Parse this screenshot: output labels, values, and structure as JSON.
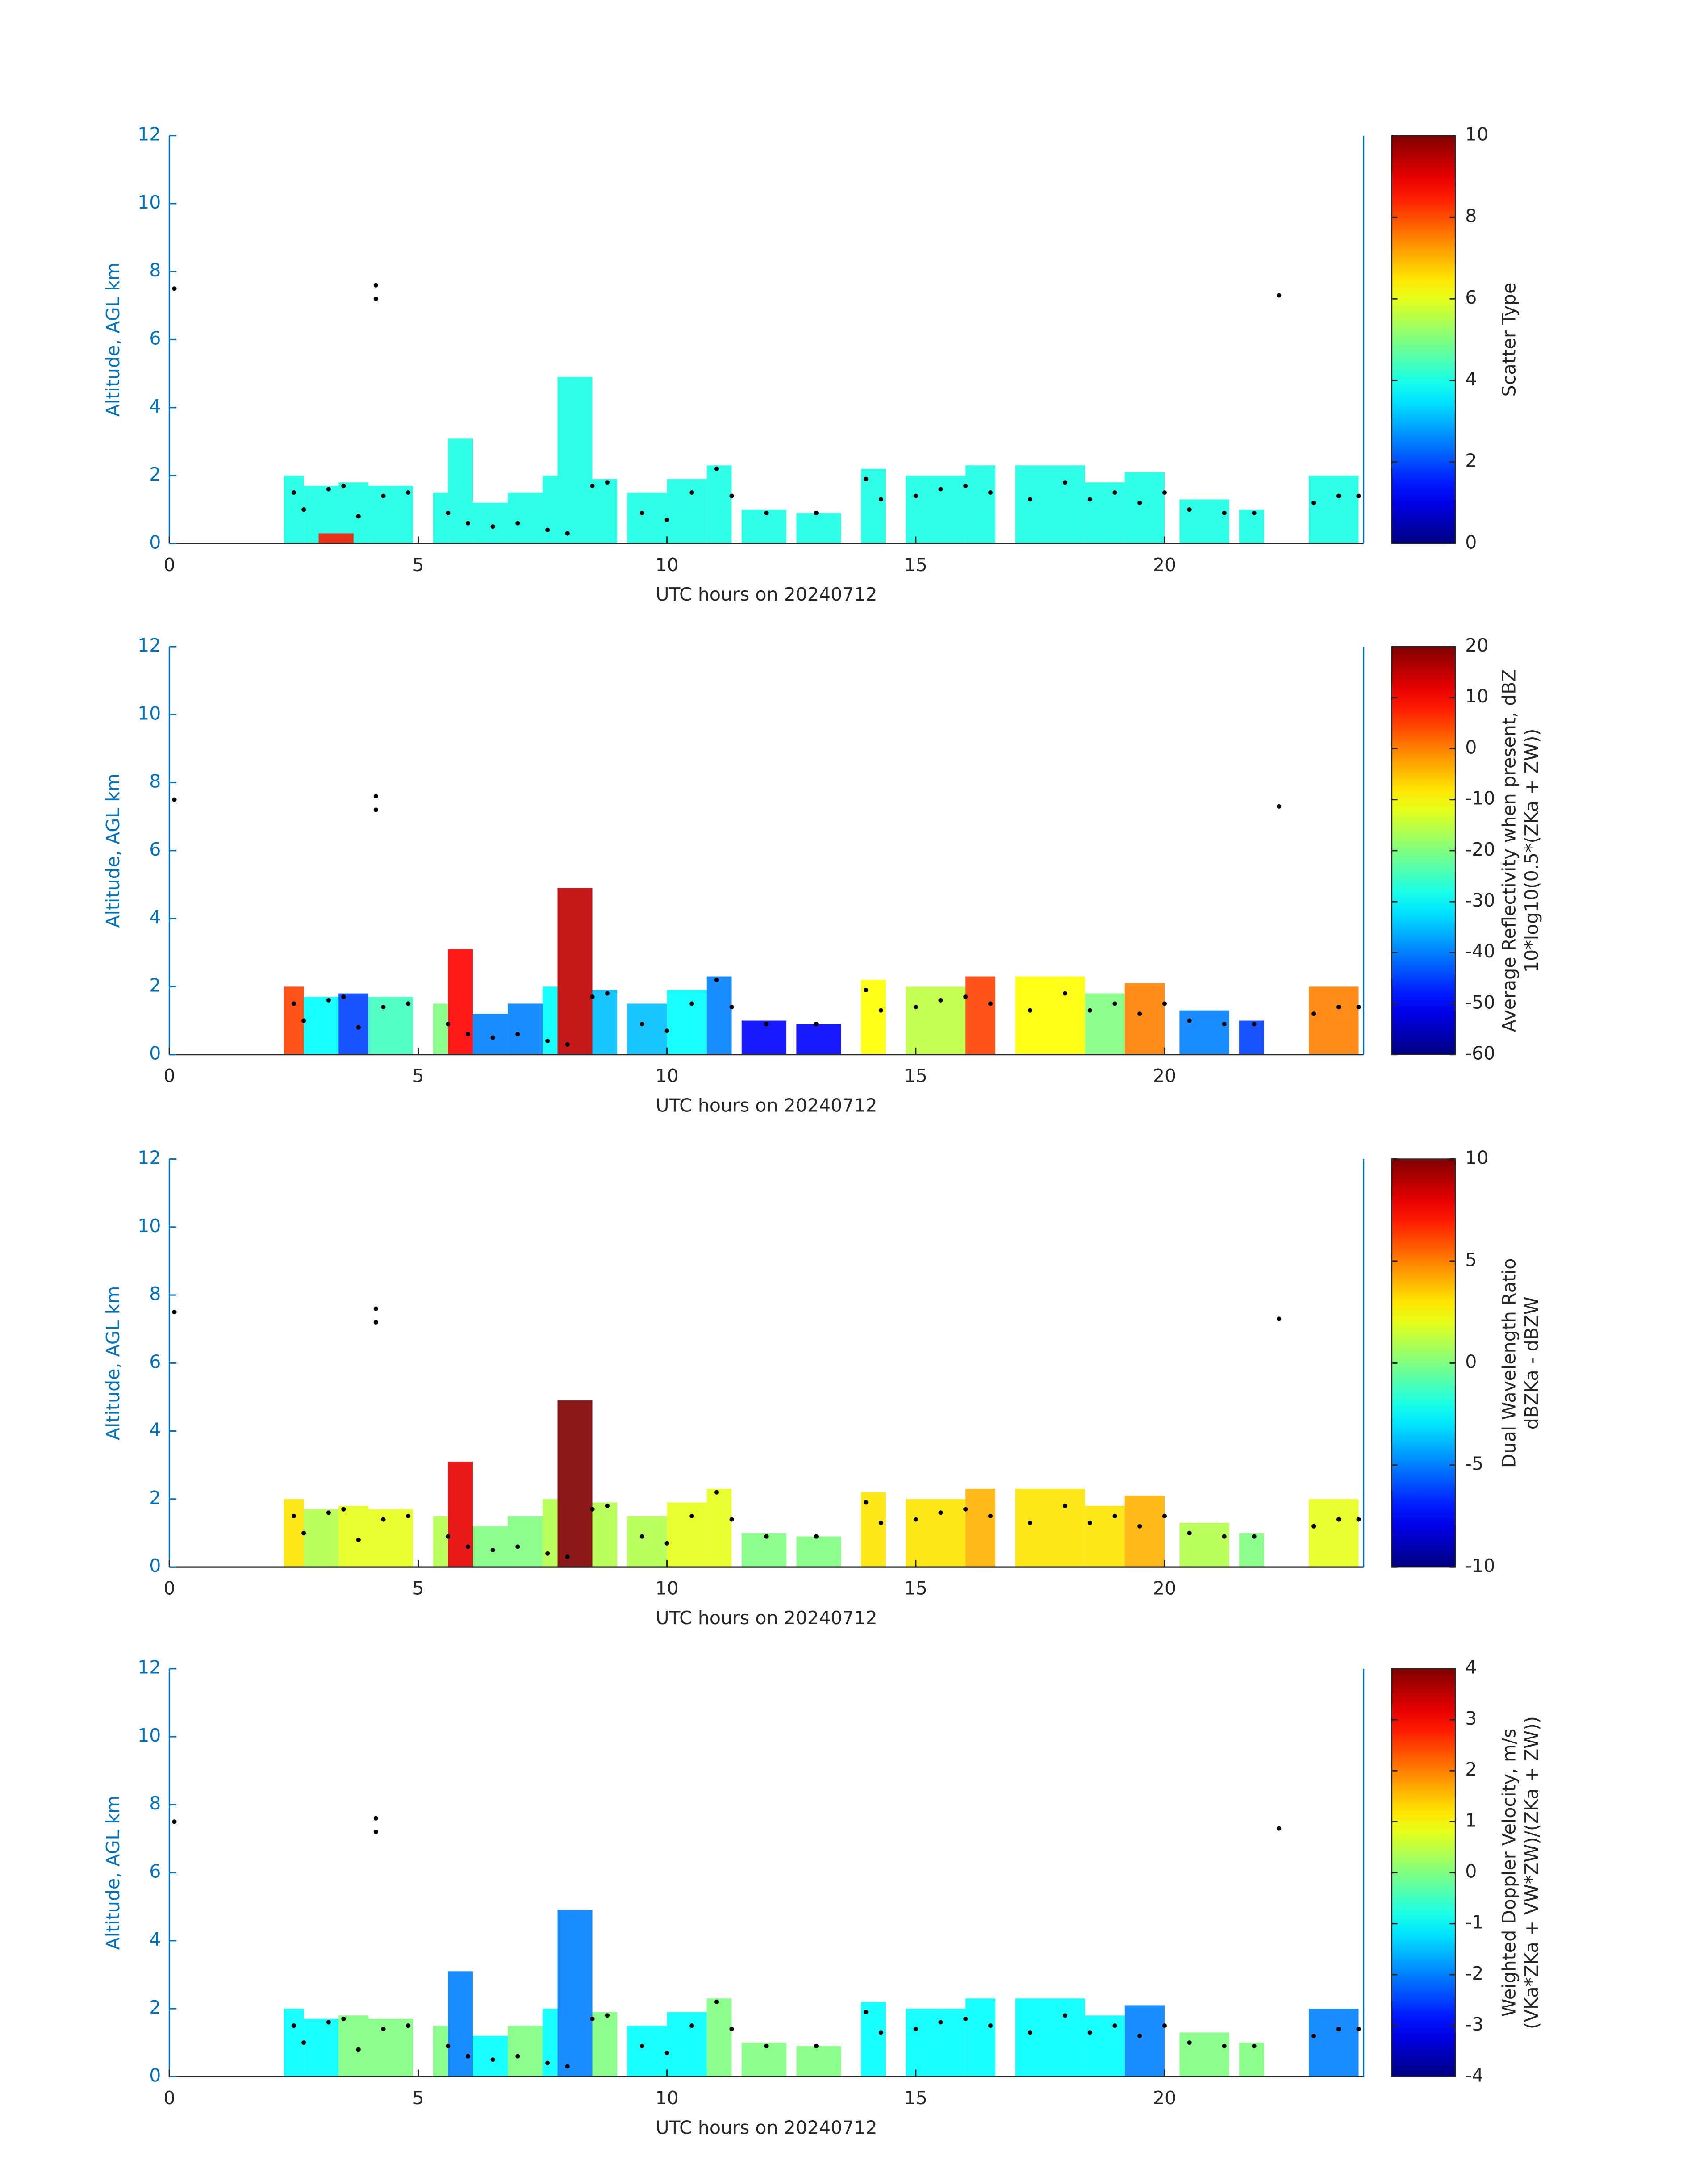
{
  "chart_data": [
    {
      "type": "heatmap",
      "xlabel": "UTC hours on 20240712",
      "ylabel": "Altitude, AGL km",
      "xlim": [
        0,
        24
      ],
      "xticks": [
        0,
        5,
        10,
        15,
        20
      ],
      "ylim": [
        0,
        12
      ],
      "yticks": [
        0,
        2,
        4,
        6,
        8,
        10,
        12
      ],
      "colorbar_label": [
        "Scatter Type"
      ],
      "colormap": "jet",
      "clim": [
        0,
        10
      ],
      "cticks": [
        0,
        2,
        4,
        6,
        8,
        10
      ],
      "columns": {
        "x0": [
          2.3,
          2.7,
          3.4,
          4.0,
          5.3,
          5.6,
          6.1,
          6.8,
          7.5,
          7.8,
          8.5,
          9.2,
          10.0,
          10.8,
          11.5,
          12.6,
          13.9,
          14.8,
          16.0,
          17.0,
          18.4,
          19.2,
          20.3,
          21.5,
          22.9,
          3.0
        ],
        "x1": [
          2.7,
          3.4,
          4.0,
          4.9,
          5.6,
          6.1,
          6.8,
          7.5,
          7.8,
          8.5,
          9.0,
          10.0,
          10.8,
          11.3,
          12.4,
          13.5,
          14.4,
          16.0,
          16.6,
          18.4,
          19.2,
          20.0,
          21.3,
          22.0,
          23.9,
          3.7
        ],
        "top": [
          2.0,
          1.7,
          1.8,
          1.7,
          1.5,
          3.1,
          1.2,
          1.5,
          2.0,
          4.9,
          1.9,
          1.5,
          1.9,
          2.3,
          1.0,
          0.9,
          2.2,
          2.0,
          2.3,
          2.3,
          1.8,
          2.1,
          1.3,
          1.0,
          2.0,
          0.3
        ],
        "values": [
          4,
          4,
          4,
          4,
          4,
          4,
          4,
          4,
          4,
          4,
          4,
          4,
          4,
          4,
          4,
          4,
          4,
          4,
          4,
          4,
          4,
          4,
          4,
          4,
          4,
          8.5
        ]
      },
      "points": {
        "x": [
          0.1,
          4.15,
          4.15,
          22.3,
          2.5,
          2.7,
          3.2,
          3.5,
          3.8,
          4.3,
          4.8,
          5.6,
          6.0,
          6.5,
          7.0,
          7.6,
          8.0,
          8.5,
          8.8,
          9.5,
          10.0,
          10.5,
          11.0,
          11.3,
          12.0,
          13.0,
          14.0,
          14.3,
          15.0,
          15.5,
          16.0,
          16.5,
          17.3,
          18.0,
          18.5,
          19.0,
          19.5,
          20.0,
          20.5,
          21.2,
          21.8,
          23.0,
          23.5,
          23.9
        ],
        "y": [
          7.5,
          7.6,
          7.2,
          7.3,
          1.5,
          1.0,
          1.6,
          1.7,
          0.8,
          1.4,
          1.5,
          0.9,
          0.6,
          0.5,
          0.6,
          0.4,
          0.3,
          1.7,
          1.8,
          0.9,
          0.7,
          1.5,
          2.2,
          1.4,
          0.9,
          0.9,
          1.9,
          1.3,
          1.4,
          1.6,
          1.7,
          1.5,
          1.3,
          1.8,
          1.3,
          1.5,
          1.2,
          1.5,
          1.0,
          0.9,
          0.9,
          1.2,
          1.4,
          1.4
        ]
      }
    },
    {
      "type": "heatmap",
      "xlabel": "UTC hours on 20240712",
      "ylabel": "Altitude, AGL km",
      "xlim": [
        0,
        24
      ],
      "xticks": [
        0,
        5,
        10,
        15,
        20
      ],
      "ylim": [
        0,
        12
      ],
      "yticks": [
        0,
        2,
        4,
        6,
        8,
        10,
        12
      ],
      "colorbar_label": [
        "Average Reflectivity when present, dBZ",
        "10*log10(0.5*(ZKa + ZW))"
      ],
      "colormap": "jet",
      "clim": [
        -60,
        20
      ],
      "cticks": [
        -60,
        -50,
        -40,
        -30,
        -20,
        -10,
        0,
        10,
        20
      ],
      "columns": {
        "x0": [
          2.3,
          2.7,
          3.4,
          4.0,
          5.3,
          5.6,
          6.1,
          6.8,
          7.5,
          7.8,
          8.5,
          9.2,
          10.0,
          10.8,
          11.5,
          12.6,
          13.9,
          14.8,
          16.0,
          17.0,
          18.4,
          19.2,
          20.3,
          21.5,
          22.9
        ],
        "x1": [
          2.7,
          3.4,
          4.0,
          4.9,
          5.6,
          6.1,
          6.8,
          7.5,
          7.8,
          8.5,
          9.0,
          10.0,
          10.8,
          11.3,
          12.4,
          13.5,
          14.4,
          16.0,
          16.6,
          18.4,
          19.2,
          20.0,
          21.3,
          22.0,
          23.9
        ],
        "top": [
          2.0,
          1.7,
          1.8,
          1.7,
          1.5,
          3.1,
          1.2,
          1.5,
          2.0,
          4.9,
          1.9,
          1.5,
          1.9,
          2.3,
          1.0,
          0.9,
          2.2,
          2.0,
          2.3,
          2.3,
          1.8,
          2.1,
          1.3,
          1.0,
          2.0
        ],
        "values": [
          5,
          -30,
          -45,
          -25,
          -20,
          10,
          -40,
          -40,
          -30,
          15,
          -35,
          -35,
          -30,
          -40,
          -50,
          -50,
          -10,
          -15,
          5,
          -10,
          -20,
          0,
          -40,
          -45,
          0
        ]
      },
      "points": {
        "x": [
          0.1,
          4.15,
          4.15,
          22.3,
          2.5,
          2.7,
          3.2,
          3.5,
          3.8,
          4.3,
          4.8,
          5.6,
          6.0,
          6.5,
          7.0,
          7.6,
          8.0,
          8.5,
          8.8,
          9.5,
          10.0,
          10.5,
          11.0,
          11.3,
          12.0,
          13.0,
          14.0,
          14.3,
          15.0,
          15.5,
          16.0,
          16.5,
          17.3,
          18.0,
          18.5,
          19.0,
          19.5,
          20.0,
          20.5,
          21.2,
          21.8,
          23.0,
          23.5,
          23.9
        ],
        "y": [
          7.5,
          7.6,
          7.2,
          7.3,
          1.5,
          1.0,
          1.6,
          1.7,
          0.8,
          1.4,
          1.5,
          0.9,
          0.6,
          0.5,
          0.6,
          0.4,
          0.3,
          1.7,
          1.8,
          0.9,
          0.7,
          1.5,
          2.2,
          1.4,
          0.9,
          0.9,
          1.9,
          1.3,
          1.4,
          1.6,
          1.7,
          1.5,
          1.3,
          1.8,
          1.3,
          1.5,
          1.2,
          1.5,
          1.0,
          0.9,
          0.9,
          1.2,
          1.4,
          1.4
        ]
      }
    },
    {
      "type": "heatmap",
      "xlabel": "UTC hours on 20240712",
      "ylabel": "Altitude, AGL km",
      "xlim": [
        0,
        24
      ],
      "xticks": [
        0,
        5,
        10,
        15,
        20
      ],
      "ylim": [
        0,
        12
      ],
      "yticks": [
        0,
        2,
        4,
        6,
        8,
        10,
        12
      ],
      "colorbar_label": [
        "Dual Wavelength Ratio",
        "dBZKa - dBZW"
      ],
      "colormap": "jet",
      "clim": [
        -10,
        10
      ],
      "cticks": [
        -10,
        -5,
        0,
        5,
        10
      ],
      "columns": {
        "x0": [
          2.3,
          2.7,
          3.4,
          4.0,
          5.3,
          5.6,
          6.1,
          6.8,
          7.5,
          7.8,
          8.5,
          9.2,
          10.0,
          10.8,
          11.5,
          12.6,
          13.9,
          14.8,
          16.0,
          17.0,
          18.4,
          19.2,
          20.3,
          21.5,
          22.9
        ],
        "x1": [
          2.7,
          3.4,
          4.0,
          4.9,
          5.6,
          6.1,
          6.8,
          7.5,
          7.8,
          8.5,
          9.0,
          10.0,
          10.8,
          11.3,
          12.4,
          13.5,
          14.4,
          16.0,
          16.6,
          18.4,
          19.2,
          20.0,
          21.3,
          22.0,
          23.9
        ],
        "top": [
          2.0,
          1.7,
          1.8,
          1.7,
          1.5,
          3.1,
          1.2,
          1.5,
          2.0,
          4.9,
          1.9,
          1.5,
          1.9,
          2.3,
          1.0,
          0.9,
          2.2,
          2.0,
          2.3,
          2.3,
          1.8,
          2.1,
          1.3,
          1.0,
          2.0
        ],
        "values": [
          3,
          1,
          2,
          2,
          1,
          8,
          0,
          0,
          1,
          10,
          1,
          1,
          2,
          2,
          0,
          0,
          3,
          3,
          4,
          3,
          3,
          4,
          1,
          0,
          2
        ]
      },
      "points": {
        "x": [
          0.1,
          4.15,
          4.15,
          22.3,
          2.5,
          2.7,
          3.2,
          3.5,
          3.8,
          4.3,
          4.8,
          5.6,
          6.0,
          6.5,
          7.0,
          7.6,
          8.0,
          8.5,
          8.8,
          9.5,
          10.0,
          10.5,
          11.0,
          11.3,
          12.0,
          13.0,
          14.0,
          14.3,
          15.0,
          15.5,
          16.0,
          16.5,
          17.3,
          18.0,
          18.5,
          19.0,
          19.5,
          20.0,
          20.5,
          21.2,
          21.8,
          23.0,
          23.5,
          23.9
        ],
        "y": [
          7.5,
          7.6,
          7.2,
          7.3,
          1.5,
          1.0,
          1.6,
          1.7,
          0.8,
          1.4,
          1.5,
          0.9,
          0.6,
          0.5,
          0.6,
          0.4,
          0.3,
          1.7,
          1.8,
          0.9,
          0.7,
          1.5,
          2.2,
          1.4,
          0.9,
          0.9,
          1.9,
          1.3,
          1.4,
          1.6,
          1.7,
          1.5,
          1.3,
          1.8,
          1.3,
          1.5,
          1.2,
          1.5,
          1.0,
          0.9,
          0.9,
          1.2,
          1.4,
          1.4
        ]
      }
    },
    {
      "type": "heatmap",
      "xlabel": "UTC hours on 20240712",
      "ylabel": "Altitude, AGL km",
      "xlim": [
        0,
        24
      ],
      "xticks": [
        0,
        5,
        10,
        15,
        20
      ],
      "ylim": [
        0,
        12
      ],
      "yticks": [
        0,
        2,
        4,
        6,
        8,
        10,
        12
      ],
      "colorbar_label": [
        "Weighted Doppler Velocity, m/s",
        "(VKa*ZKa + VW*ZW)/(ZKa + ZW))"
      ],
      "colormap": "jet",
      "clim": [
        -4,
        4
      ],
      "cticks": [
        -4,
        -3,
        -2,
        -1,
        0,
        1,
        2,
        3,
        4
      ],
      "columns": {
        "x0": [
          2.3,
          2.7,
          3.4,
          4.0,
          5.3,
          5.6,
          6.1,
          6.8,
          7.5,
          7.8,
          8.5,
          9.2,
          10.0,
          10.8,
          11.5,
          12.6,
          13.9,
          14.8,
          16.0,
          17.0,
          18.4,
          19.2,
          20.3,
          21.5,
          22.9
        ],
        "x1": [
          2.7,
          3.4,
          4.0,
          4.9,
          5.6,
          6.1,
          6.8,
          7.5,
          7.8,
          8.5,
          9.0,
          10.0,
          10.8,
          11.3,
          12.4,
          13.5,
          14.4,
          16.0,
          16.6,
          18.4,
          19.2,
          20.0,
          21.3,
          22.0,
          23.9
        ],
        "top": [
          2.0,
          1.7,
          1.8,
          1.7,
          1.5,
          3.1,
          1.2,
          1.5,
          2.0,
          4.9,
          1.9,
          1.5,
          1.9,
          2.3,
          1.0,
          0.9,
          2.2,
          2.0,
          2.3,
          2.3,
          1.8,
          2.1,
          1.3,
          1.0,
          2.0
        ],
        "values": [
          -1,
          -1,
          0,
          0,
          0,
          -2,
          -1,
          0,
          -1,
          -2,
          0,
          -1,
          -1,
          0,
          0,
          0,
          -1,
          -1,
          -1,
          -1,
          -1,
          -2,
          0,
          0,
          -2
        ]
      },
      "points": {
        "x": [
          0.1,
          4.15,
          4.15,
          22.3,
          2.5,
          2.7,
          3.2,
          3.5,
          3.8,
          4.3,
          4.8,
          5.6,
          6.0,
          6.5,
          7.0,
          7.6,
          8.0,
          8.5,
          8.8,
          9.5,
          10.0,
          10.5,
          11.0,
          11.3,
          12.0,
          13.0,
          14.0,
          14.3,
          15.0,
          15.5,
          16.0,
          16.5,
          17.3,
          18.0,
          18.5,
          19.0,
          19.5,
          20.0,
          20.5,
          21.2,
          21.8,
          23.0,
          23.5,
          23.9
        ],
        "y": [
          7.5,
          7.6,
          7.2,
          7.3,
          1.5,
          1.0,
          1.6,
          1.7,
          0.8,
          1.4,
          1.5,
          0.9,
          0.6,
          0.5,
          0.6,
          0.4,
          0.3,
          1.7,
          1.8,
          0.9,
          0.7,
          1.5,
          2.2,
          1.4,
          0.9,
          0.9,
          1.9,
          1.3,
          1.4,
          1.6,
          1.7,
          1.5,
          1.3,
          1.8,
          1.3,
          1.5,
          1.2,
          1.5,
          1.0,
          0.9,
          0.9,
          1.2,
          1.4,
          1.4
        ]
      }
    }
  ]
}
